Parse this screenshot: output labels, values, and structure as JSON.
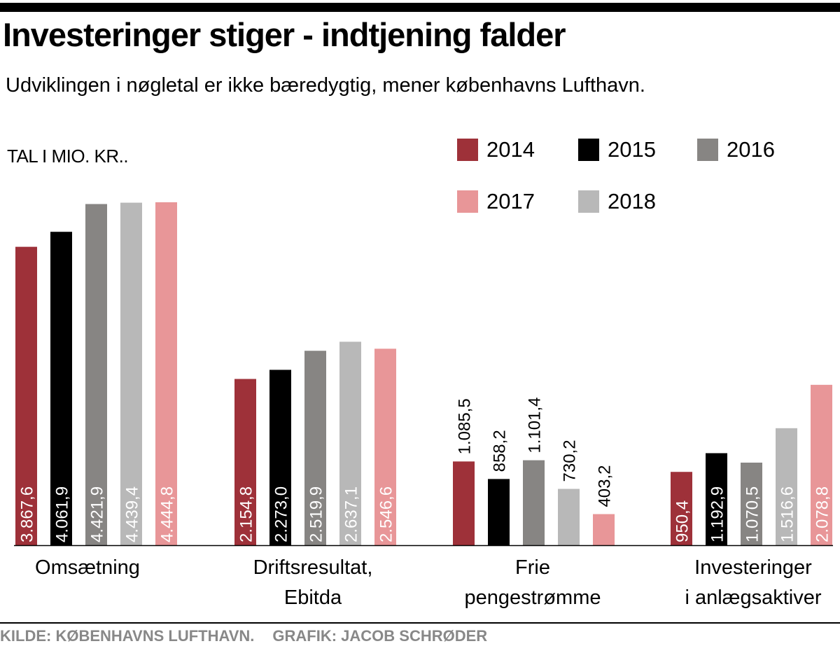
{
  "header": {
    "title": "Investeringer stiger - indtjening falder",
    "subtitle": "Udviklingen i nøgletal er ikke bæredygtig, mener københavns Lufthavn."
  },
  "footer": {
    "source": "KILDE: KØBENHAVNS LUFTHAVN.",
    "credit": "GRAFIK: JACOB SCHRØDER"
  },
  "chart_data": {
    "type": "bar",
    "title": "Investeringer stiger - indtjening falder",
    "subtitle": "Udviklingen i nøgletal er ikke bæredygtig, mener københavns Lufthavn.",
    "unit_label": "TAL I MIO. KR..",
    "categories": [
      [
        "Omsætning"
      ],
      [
        "Driftsresultat,",
        "Ebitda"
      ],
      [
        "Frie",
        "pengestrømme"
      ],
      [
        "Investeringer",
        "i anlægsaktiver"
      ]
    ],
    "series": [
      {
        "name": "2014",
        "color": "#9e3139",
        "values": [
          3867.6,
          2154.8,
          1085.5,
          950.4
        ],
        "labels": [
          "3.867,6",
          "2.154,8",
          "1.085,5",
          "950,4"
        ]
      },
      {
        "name": "2015",
        "color": "#000000",
        "values": [
          4061.9,
          2273.0,
          858.2,
          1192.9
        ],
        "labels": [
          "4.061,9",
          "2.273,0",
          "858,2",
          "1.192,9"
        ]
      },
      {
        "name": "2016",
        "color": "#878583",
        "values": [
          4421.9,
          2519.9,
          1101.4,
          1070.5
        ],
        "labels": [
          "4.421,9",
          "2.519,9",
          "1.101,4",
          "1.070,5"
        ]
      },
      {
        "name": "2018",
        "color": "#b8b8b8",
        "values": [
          4439.4,
          2637.1,
          730.2,
          1516.6
        ],
        "labels": [
          "4.439,4",
          "2.637,1",
          "730,2",
          "1.516,6"
        ]
      },
      {
        "name": "2017",
        "color": "#e89698",
        "values": [
          4444.8,
          2546.6,
          403.2,
          2078.8
        ],
        "labels": [
          "4.444,8",
          "2.546,6",
          "403,2",
          "2.078,8"
        ]
      }
    ],
    "legend": [
      {
        "name": "2014",
        "color": "#9e3139"
      },
      {
        "name": "2015",
        "color": "#000000"
      },
      {
        "name": "2016",
        "color": "#878583"
      },
      {
        "name": "2017",
        "color": "#e89698"
      },
      {
        "name": "2018",
        "color": "#b8b8b8"
      }
    ],
    "legend_placement": "top-right",
    "label_placement": [
      "inside",
      "inside",
      "above",
      "inside"
    ],
    "ylim": [
      0,
      4600
    ],
    "grid": false
  }
}
